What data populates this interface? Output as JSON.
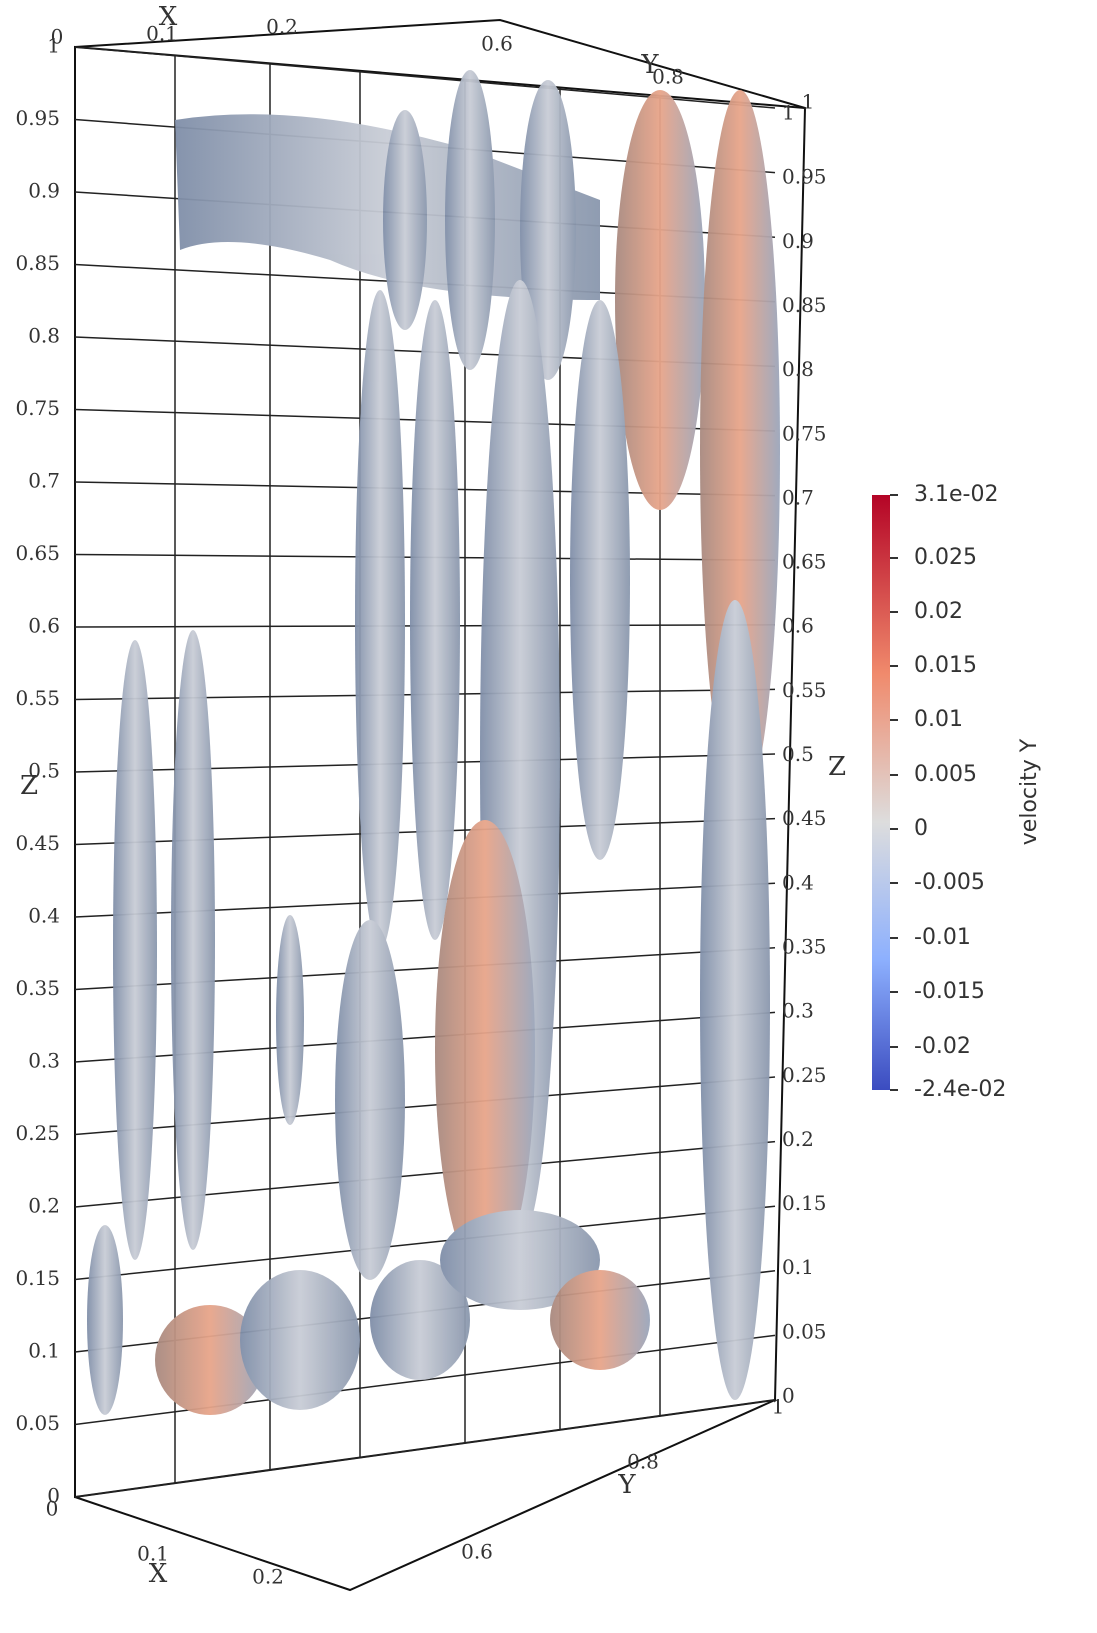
{
  "axes": {
    "z_left": {
      "title": "Z",
      "ticks": [
        "0",
        "0.05",
        "0.1",
        "0.15",
        "0.2",
        "0.25",
        "0.3",
        "0.35",
        "0.4",
        "0.45",
        "0.5",
        "0.55",
        "0.6",
        "0.65",
        "0.7",
        "0.75",
        "0.8",
        "0.85",
        "0.9",
        "0.95",
        "1"
      ]
    },
    "z_right": {
      "title": "Z",
      "ticks": [
        "0",
        "0.05",
        "0.1",
        "0.15",
        "0.2",
        "0.25",
        "0.3",
        "0.35",
        "0.4",
        "0.45",
        "0.5",
        "0.55",
        "0.6",
        "0.65",
        "0.7",
        "0.75",
        "0.8",
        "0.85",
        "0.9",
        "0.95",
        "1"
      ]
    },
    "x_top": {
      "title": "X",
      "ticks": [
        "0",
        "0.1",
        "0.2"
      ]
    },
    "y_top": {
      "title": "Y",
      "ticks": [
        "0.6",
        "0.8",
        "1"
      ]
    },
    "x_bottom": {
      "title": "X",
      "ticks": [
        "0",
        "0.1",
        "0.2"
      ]
    },
    "y_bottom": {
      "title": "Y",
      "ticks": [
        "0.6",
        "0.8",
        "1"
      ]
    }
  },
  "colorbar": {
    "title": "velocity Y",
    "ticks": [
      "3.1e-02",
      "0.025",
      "0.02",
      "0.015",
      "0.01",
      "0.005",
      "0",
      "-0.005",
      "-0.01",
      "-0.015",
      "-0.02",
      "-2.4e-02"
    ]
  }
}
